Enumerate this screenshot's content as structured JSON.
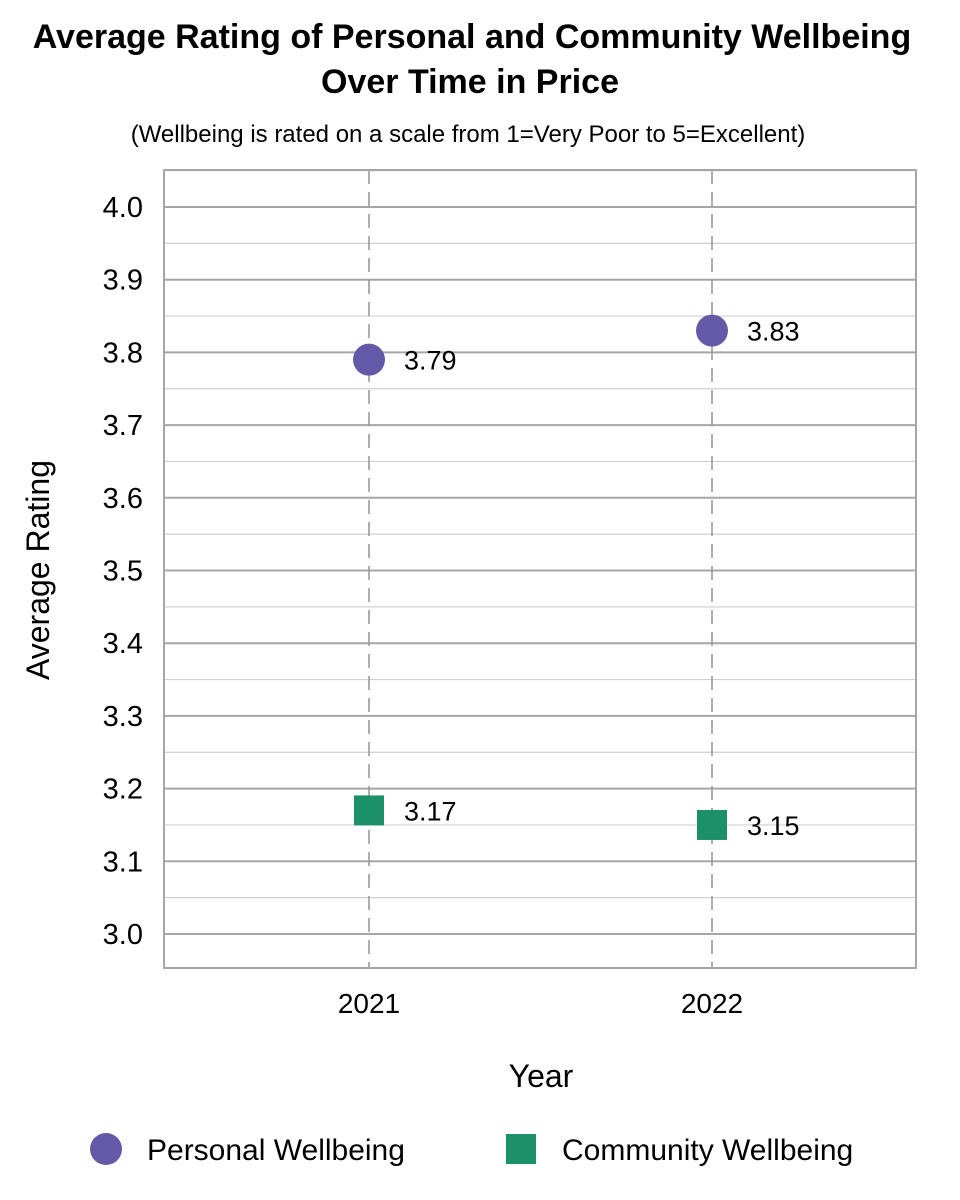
{
  "chart_data": {
    "type": "scatter",
    "title_line1": "Average Rating of Personal and Community Wellbeing",
    "title_line2": "Over Time in Price",
    "subtitle": "(Wellbeing is rated on a scale from 1=Very Poor to 5=Excellent)",
    "xlabel": "Year",
    "ylabel": "Average Rating",
    "categories": [
      "2021",
      "2022"
    ],
    "ylim": [
      3.0,
      4.0
    ],
    "yticks": [
      "3.0",
      "3.1",
      "3.2",
      "3.3",
      "3.4",
      "3.5",
      "3.6",
      "3.7",
      "3.8",
      "3.9",
      "4.0"
    ],
    "grid": true,
    "legend_position": "bottom",
    "series": [
      {
        "name": "Personal Wellbeing",
        "values": [
          3.79,
          3.83
        ],
        "labels": [
          "3.79",
          "3.83"
        ],
        "color": "#6459a7",
        "marker": "circle"
      },
      {
        "name": "Community Wellbeing",
        "values": [
          3.17,
          3.15
        ],
        "labels": [
          "3.17",
          "3.15"
        ],
        "color": "#1c9068",
        "marker": "square"
      }
    ]
  }
}
